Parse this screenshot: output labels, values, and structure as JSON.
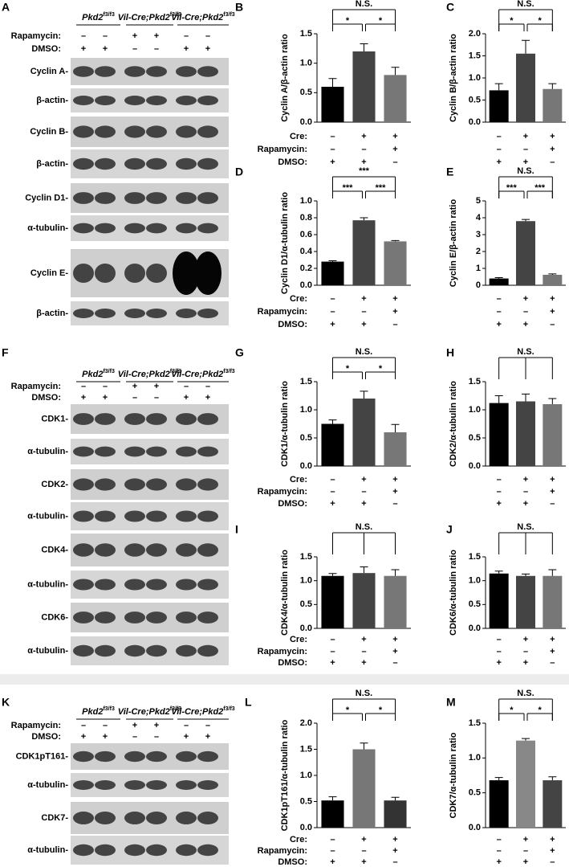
{
  "blots": [
    {
      "label": "A",
      "groups": [
        {
          "gene": "Pkd2",
          "sup": "f3/f3"
        },
        {
          "prefix": "Vil-Cre;",
          "gene": "Pkd2",
          "sup": "f3/f3"
        },
        {
          "prefix": "Vil-Cre;",
          "gene": "Pkd2",
          "sup": "f3/f3"
        }
      ],
      "treatments": [
        {
          "name": "Rapamycin:",
          "signs": [
            "–",
            "–",
            "+",
            "+",
            "–",
            "–"
          ]
        },
        {
          "name": "DMSO:",
          "signs": [
            "+",
            "+",
            "–",
            "–",
            "+",
            "+"
          ]
        }
      ],
      "bands": [
        "Cyclin A-",
        "β-actin-",
        "Cyclin B-",
        "β-actin-",
        "Cyclin D1-",
        "α-tubulin-",
        "Cyclin E-",
        "β-actin-"
      ]
    },
    {
      "label": "F",
      "groups": [
        {
          "gene": "Pkd2",
          "sup": "f3/f3"
        },
        {
          "prefix": "Vil-Cre;",
          "gene": "Pkd2",
          "sup": "f3/f3"
        },
        {
          "prefix": "Vil-Cre;",
          "gene": "Pkd2",
          "sup": "f3/f3"
        }
      ],
      "treatments": [
        {
          "name": "Rapamycin:",
          "signs": [
            "–",
            "–",
            "+",
            "+",
            "–",
            "–"
          ]
        },
        {
          "name": "DMSO:",
          "signs": [
            "+",
            "+",
            "–",
            "–",
            "+",
            "+"
          ]
        }
      ],
      "bands": [
        "CDK1-",
        "α-tubulin-",
        "CDK2-",
        "α-tubulin-",
        "CDK4-",
        "α-tubulin-",
        "CDK6-",
        "α-tubulin-"
      ]
    },
    {
      "label": "K",
      "groups": [
        {
          "gene": "Pkd2",
          "sup": "f3/f3"
        },
        {
          "prefix": "Vil-Cre;",
          "gene": "Pkd2",
          "sup": "f3/f3"
        },
        {
          "prefix": "Vil-Cre;",
          "gene": "Pkd2",
          "sup": "f3/f3"
        }
      ],
      "treatments": [
        {
          "name": "Rapamycin:",
          "signs": [
            "–",
            "–",
            "+",
            "+",
            "–",
            "–"
          ]
        },
        {
          "name": "DMSO:",
          "signs": [
            "+",
            "+",
            "–",
            "–",
            "+",
            "+"
          ]
        }
      ],
      "bands": [
        "CDK1pT161-",
        "α-tubulin-",
        "CDK7-",
        "α-tubulin-"
      ]
    }
  ],
  "chart_data": [
    {
      "type": "bar",
      "label": "B",
      "ylabel": "Cyclin A/β-actin ratio",
      "values": [
        0.6,
        1.2,
        0.8
      ],
      "errors": [
        0.14,
        0.13,
        0.13
      ],
      "colors": [
        "#000000",
        "#444444",
        "#777777"
      ],
      "ylim": [
        0,
        1.5
      ],
      "yticks": [
        {
          "value": 0,
          "label": "0.0"
        },
        0.5,
        {
          "value": 1,
          "label": "1.0"
        },
        1.5
      ],
      "annotations": {
        "top": "N.S.",
        "pairs": [
          "*",
          "*"
        ]
      },
      "conditions": [
        {
          "name": "Cre:",
          "signs": [
            "–",
            "+",
            "+"
          ]
        },
        {
          "name": "Rapamycin:",
          "signs": [
            "–",
            "–",
            "+"
          ]
        },
        {
          "name": "DMSO:",
          "signs": [
            "+",
            "+",
            "–"
          ]
        }
      ]
    },
    {
      "type": "bar",
      "label": "C",
      "ylabel": "Cyclin B/β-actin ratio",
      "values": [
        0.72,
        1.55,
        0.75
      ],
      "errors": [
        0.15,
        0.3,
        0.12
      ],
      "colors": [
        "#000000",
        "#444444",
        "#777777"
      ],
      "ylim": [
        0,
        2
      ],
      "yticks": [
        {
          "value": 0,
          "label": "0.0"
        },
        0.5,
        {
          "value": 1,
          "label": "1.0"
        },
        1.5,
        {
          "value": 2,
          "label": "2.0"
        }
      ],
      "annotations": {
        "top": "N.S.",
        "pairs": [
          "*",
          "*"
        ]
      },
      "conditions": [
        {
          "signs": [
            "–",
            "+",
            "+"
          ]
        },
        {
          "signs": [
            "–",
            "–",
            "+"
          ]
        },
        {
          "signs": [
            "+",
            "+",
            "–"
          ]
        }
      ]
    },
    {
      "type": "bar",
      "label": "D",
      "ylabel": "Cyclin D1/α-tubulin ratio",
      "values": [
        0.28,
        0.77,
        0.52
      ],
      "errors": [
        0.01,
        0.03,
        0.01
      ],
      "colors": [
        "#000000",
        "#444444",
        "#777777"
      ],
      "ylim": [
        0,
        1
      ],
      "yticks": [
        {
          "value": 0,
          "label": "0.0"
        },
        0.2,
        0.4,
        0.6,
        0.8,
        {
          "value": 1,
          "label": "1.0"
        }
      ],
      "annotations": {
        "top": "***",
        "pairs": [
          "***",
          "***"
        ]
      },
      "conditions": [
        {
          "name": "Cre:",
          "signs": [
            "–",
            "+",
            "+"
          ]
        },
        {
          "name": "Rapamycin:",
          "signs": [
            "–",
            "–",
            "+"
          ]
        },
        {
          "name": "DMSO:",
          "signs": [
            "+",
            "+",
            "–"
          ]
        }
      ]
    },
    {
      "type": "bar",
      "label": "E",
      "ylabel": "Cyclin E/β-actin ratio",
      "values": [
        0.4,
        3.8,
        0.62
      ],
      "errors": [
        0.05,
        0.1,
        0.05
      ],
      "colors": [
        "#000000",
        "#444444",
        "#777777"
      ],
      "ylim": [
        0,
        5
      ],
      "yticks": [
        0,
        1,
        2,
        3,
        4,
        5
      ],
      "annotations": {
        "top": "N.S.",
        "pairs": [
          "***",
          "***"
        ]
      },
      "conditions": [
        {
          "signs": [
            "–",
            "+",
            "+"
          ]
        },
        {
          "signs": [
            "–",
            "–",
            "+"
          ]
        },
        {
          "signs": [
            "+",
            "+",
            "–"
          ]
        }
      ]
    },
    {
      "type": "bar",
      "label": "G",
      "ylabel": "CDK1/α-tubulin ratio",
      "values": [
        0.75,
        1.2,
        0.6
      ],
      "errors": [
        0.07,
        0.13,
        0.14
      ],
      "colors": [
        "#000000",
        "#444444",
        "#777777"
      ],
      "ylim": [
        0,
        1.5
      ],
      "yticks": [
        {
          "value": 0,
          "label": "0.0"
        },
        0.5,
        {
          "value": 1,
          "label": "1.0"
        },
        1.5
      ],
      "annotations": {
        "top": "N.S.",
        "pairs": [
          "*",
          "*"
        ]
      },
      "conditions": [
        {
          "name": "Cre:",
          "signs": [
            "–",
            "+",
            "+"
          ]
        },
        {
          "name": "Rapamycin:",
          "signs": [
            "–",
            "–",
            "+"
          ]
        },
        {
          "name": "DMSO:",
          "signs": [
            "+",
            "+",
            "–"
          ]
        }
      ]
    },
    {
      "type": "bar",
      "label": "H",
      "ylabel": "CDK2/α-tubulin ratio",
      "values": [
        1.12,
        1.15,
        1.1
      ],
      "errors": [
        0.13,
        0.13,
        0.1
      ],
      "colors": [
        "#000000",
        "#444444",
        "#777777"
      ],
      "ylim": [
        0,
        1.5
      ],
      "yticks": [
        {
          "value": 0,
          "label": "0.0"
        },
        0.5,
        {
          "value": 1,
          "label": "1.0"
        },
        1.5
      ],
      "annotations": {
        "top": "N.S."
      },
      "conditions": [
        {
          "signs": [
            "–",
            "+",
            "+"
          ]
        },
        {
          "signs": [
            "–",
            "–",
            "+"
          ]
        },
        {
          "signs": [
            "+",
            "+",
            "–"
          ]
        }
      ]
    },
    {
      "type": "bar",
      "label": "I",
      "ylabel": "CDK4/α-tubulin ratio",
      "values": [
        1.1,
        1.16,
        1.1
      ],
      "errors": [
        0.05,
        0.13,
        0.13
      ],
      "colors": [
        "#000000",
        "#444444",
        "#777777"
      ],
      "ylim": [
        0,
        1.5
      ],
      "yticks": [
        {
          "value": 0,
          "label": "0.0"
        },
        0.5,
        {
          "value": 1,
          "label": "1.0"
        },
        1.5
      ],
      "annotations": {
        "top": "N.S."
      },
      "conditions": [
        {
          "name": "Cre:",
          "signs": [
            "–",
            "+",
            "+"
          ]
        },
        {
          "name": "Rapamycin:",
          "signs": [
            "–",
            "–",
            "+"
          ]
        },
        {
          "name": "DMSO:",
          "signs": [
            "+",
            "+",
            "–"
          ]
        }
      ]
    },
    {
      "type": "bar",
      "label": "J",
      "ylabel": "CDK6/α-tubulin ratio",
      "values": [
        1.15,
        1.1,
        1.1
      ],
      "errors": [
        0.05,
        0.04,
        0.13
      ],
      "colors": [
        "#000000",
        "#444444",
        "#777777"
      ],
      "ylim": [
        0,
        1.5
      ],
      "yticks": [
        {
          "value": 0,
          "label": "0.0"
        },
        0.5,
        {
          "value": 1,
          "label": "1.0"
        },
        1.5
      ],
      "annotations": {
        "top": "N.S."
      },
      "conditions": [
        {
          "signs": [
            "–",
            "+",
            "+"
          ]
        },
        {
          "signs": [
            "–",
            "–",
            "+"
          ]
        },
        {
          "signs": [
            "+",
            "+",
            "–"
          ]
        }
      ]
    },
    {
      "type": "bar",
      "label": "L",
      "ylabel": "CDK1pT161/α-tubulin ratio",
      "values": [
        0.52,
        1.5,
        0.52
      ],
      "errors": [
        0.07,
        0.12,
        0.06
      ],
      "colors": [
        "#000000",
        "#777777",
        "#333333"
      ],
      "ylim": [
        0,
        2
      ],
      "yticks": [
        {
          "value": 0,
          "label": "0.0"
        },
        0.5,
        {
          "value": 1,
          "label": "1.0"
        },
        1.5,
        {
          "value": 2,
          "label": "2.0"
        }
      ],
      "annotations": {
        "top": "N.S.",
        "pairs": [
          "*",
          "*"
        ]
      },
      "conditions": [
        {
          "name": "Cre:",
          "signs": [
            "–",
            "+",
            "+"
          ]
        },
        {
          "name": "Rapamycin:",
          "signs": [
            "–",
            "–",
            "+"
          ]
        },
        {
          "name": "DMSO:",
          "signs": [
            "+",
            "+",
            "–"
          ]
        }
      ]
    },
    {
      "type": "bar",
      "label": "M",
      "ylabel": "CDK7/α-tubulin ratio",
      "values": [
        0.68,
        1.25,
        0.68
      ],
      "errors": [
        0.04,
        0.03,
        0.05
      ],
      "colors": [
        "#000000",
        "#888888",
        "#444444"
      ],
      "ylim": [
        0,
        1.5
      ],
      "yticks": [
        {
          "value": 0,
          "label": "0.0"
        },
        0.5,
        {
          "value": 1,
          "label": "1.0"
        },
        1.5
      ],
      "annotations": {
        "top": "N.S.",
        "pairs": [
          "*",
          "*"
        ]
      },
      "conditions": [
        {
          "signs": [
            "–",
            "+",
            "+"
          ]
        },
        {
          "signs": [
            "–",
            "–",
            "+"
          ]
        },
        {
          "signs": [
            "+",
            "+",
            "–"
          ]
        }
      ]
    }
  ]
}
